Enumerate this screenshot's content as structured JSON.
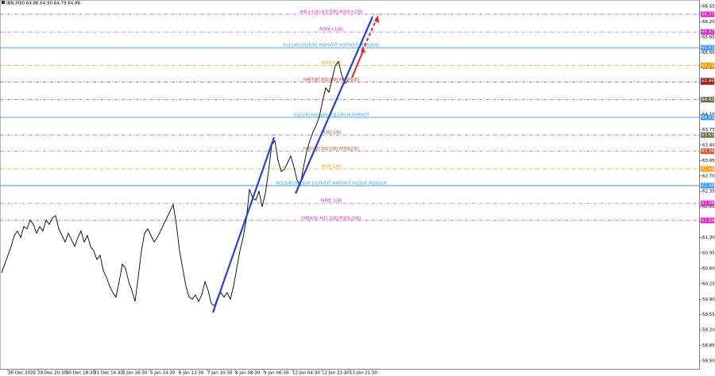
{
  "chart_data": {
    "type": "line",
    "title": "IBN,M30 64.86 64.90 64.79 64.86",
    "series": [
      {
        "color": "#000000",
        "values": [
          60.5,
          60.7,
          60.9,
          61.1,
          61.35,
          61.45,
          61.3,
          61.55,
          61.5,
          61.7,
          61.6,
          61.4,
          61.55,
          61.45,
          61.7,
          61.6,
          61.75,
          61.8,
          61.5,
          61.35,
          61.2,
          61.4,
          61.25,
          61.1,
          61.3,
          61.45,
          61.2,
          61.35,
          61.1,
          61.0,
          60.8,
          60.9,
          60.55,
          60.4,
          60.2,
          60.05,
          59.95,
          60.3,
          60.7,
          60.6,
          60.3,
          60.1,
          59.85,
          60.4,
          61.0,
          61.4,
          61.5,
          61.35,
          61.2,
          61.3,
          61.45,
          61.6,
          61.75,
          61.9,
          62.05,
          61.6,
          61.0,
          60.6,
          60.2,
          59.95,
          59.9,
          60.0,
          59.85,
          60.0,
          60.3,
          60.1,
          59.8,
          59.75,
          59.95,
          60.05,
          59.95,
          60.05,
          59.9,
          60.2,
          60.6,
          61.0,
          61.3,
          61.7,
          62.4,
          62.2,
          62.15,
          62.35,
          62.0,
          62.3,
          62.8,
          63.4,
          63.5,
          63.05,
          62.8,
          62.85,
          63.0,
          63.15,
          62.9,
          62.6,
          62.5,
          62.9,
          63.25,
          63.5,
          63.7,
          63.85,
          64.05,
          64.4,
          64.7,
          64.6,
          64.9,
          65.2,
          65.3,
          65.0,
          64.8,
          64.86
        ]
      }
    ],
    "xlim": [
      0,
      220
    ],
    "xticks": [
      {
        "value": 2.5,
        "label": "26 Dec 2025"
      },
      {
        "value": 11.75,
        "label": "29 Dec 20:30"
      },
      {
        "value": 20.75,
        "label": "30 Dec 18:30"
      },
      {
        "value": 29.5,
        "label": "31 Dec 16:30"
      },
      {
        "value": 38.5,
        "label": "2 Jan 16:30"
      },
      {
        "value": 47.25,
        "label": "5 Jan 14:30"
      },
      {
        "value": 56.25,
        "label": "6 Jan 12:30"
      },
      {
        "value": 65.25,
        "label": "7 Jan 10:30"
      },
      {
        "value": 74,
        "label": "8 Jan 08:30"
      },
      {
        "value": 83,
        "label": "9 Jan 06:30"
      },
      {
        "value": 92,
        "label": "12 Jan 04:30"
      },
      {
        "value": 101.25,
        "label": "12 Jan 22:30"
      },
      {
        "value": 110,
        "label": "13 Jan 21:30"
      }
    ],
    "ylim": [
      58.32,
      66.64
    ],
    "yticks": [
      {
        "value": 58.5,
        "label": "58.50"
      },
      58.85,
      {
        "value": 59.2,
        "label": "59.20"
      },
      59.55,
      {
        "value": 59.9,
        "label": "59.90"
      },
      60.25,
      {
        "value": 60.6,
        "label": "60.60"
      },
      60.95,
      {
        "value": 61.3,
        "label": "61.30"
      },
      61.65,
      {
        "value": 62.0,
        "label": "62.00"
      },
      62.35,
      {
        "value": 62.7,
        "label": "62.70"
      },
      63.05,
      {
        "value": 63.4,
        "label": "63.40"
      },
      63.75,
      {
        "value": 64.1,
        "label": "64.10"
      },
      64.45,
      {
        "value": 64.8,
        "label": "64.80"
      },
      65.15,
      {
        "value": 65.5,
        "label": "65.50"
      },
      65.85,
      {
        "value": 66.2,
        "label": "66.20"
      },
      66.55
    ],
    "levels": [
      {
        "value": 66.37,
        "label": "H4[+1/8] H1[5/8] M30[+2/8]",
        "color": "#e020c0",
        "style": "dashed"
      },
      {
        "value": 65.97,
        "label": "M30[+1/8]",
        "color": "#e020c0",
        "style": "dashed"
      },
      {
        "value": 65.61,
        "label": "H1[1/8] D1[6/8] H4PIVOT H1PIVOT M30[8/8]",
        "color": "#3399ff",
        "style": "solid"
      },
      {
        "value": 65.21,
        "label": "M30[7/8]",
        "color": "#ff9900",
        "style": "dashed"
      },
      {
        "value": 64.83,
        "label": "H4[7/8] H1[3/8] M30[6/8]",
        "color": "#e03020",
        "style": "dashed"
      },
      {
        "value": 64.43,
        "color": "#6b6b50",
        "style": "dashed"
      },
      {
        "value": 64.03,
        "label": "D1[5/8] H4[6/8] H1[2/8] M30PIVOT",
        "color": "#3399ff",
        "style": "solid"
      },
      {
        "value": 63.63,
        "label": "M30[3/8]",
        "color": "#6b6b50",
        "style": "dashed"
      },
      {
        "value": 63.26,
        "label": "H4[5/8] H1[1/8] M30[2/8]",
        "color": "#e05020",
        "style": "dashed"
      },
      {
        "value": 62.86,
        "label": "M30[1/8]",
        "color": "#ff9900",
        "style": "dashed"
      },
      {
        "value": 62.48,
        "label": "W1[5/8] W1SUP D1PIVOT H4PIVOT H1SUP M30SUP",
        "color": "#3399ff",
        "style": "solid"
      },
      {
        "value": 62.08,
        "label": "M30[-1/8]",
        "color": "#e020c0",
        "style": "dashed"
      },
      {
        "value": 61.69,
        "label": "H4[4/8] H1[-1/8] M30[-2/8]",
        "color": "#e020c0",
        "style": "dashed"
      }
    ]
  }
}
